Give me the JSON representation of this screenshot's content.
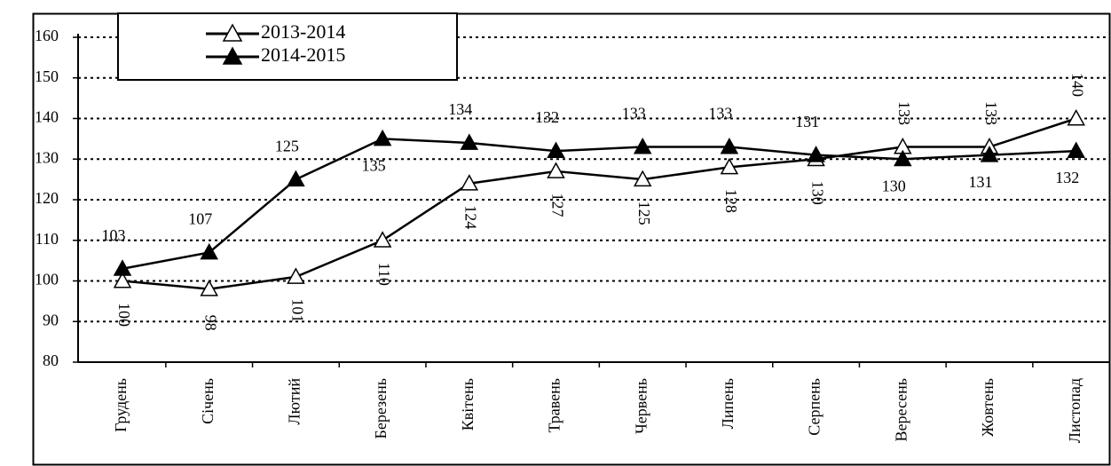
{
  "chart_data": {
    "type": "line",
    "categories": [
      "Грудень",
      "Січень",
      "Лютий",
      "Березень",
      "Квітень",
      "Травень",
      "Червень",
      "Липень",
      "Серпень",
      "Вересень",
      "Жовтень",
      "Листопад"
    ],
    "series": [
      {
        "name": "2013-2014",
        "color": "#000000",
        "marker": "open-triangle",
        "values": [
          100,
          98,
          101,
          110,
          124,
          127,
          125,
          128,
          130,
          133,
          133,
          140
        ]
      },
      {
        "name": "2014-2015",
        "color": "#000000",
        "marker": "filled-triangle",
        "values": [
          103,
          107,
          125,
          135,
          134,
          132,
          133,
          133,
          131,
          130,
          131,
          132
        ]
      }
    ],
    "ylim": [
      80,
      160
    ],
    "yticks": [
      80,
      90,
      100,
      110,
      120,
      130,
      140,
      150,
      160
    ],
    "grid": true,
    "legend": "top-left"
  }
}
